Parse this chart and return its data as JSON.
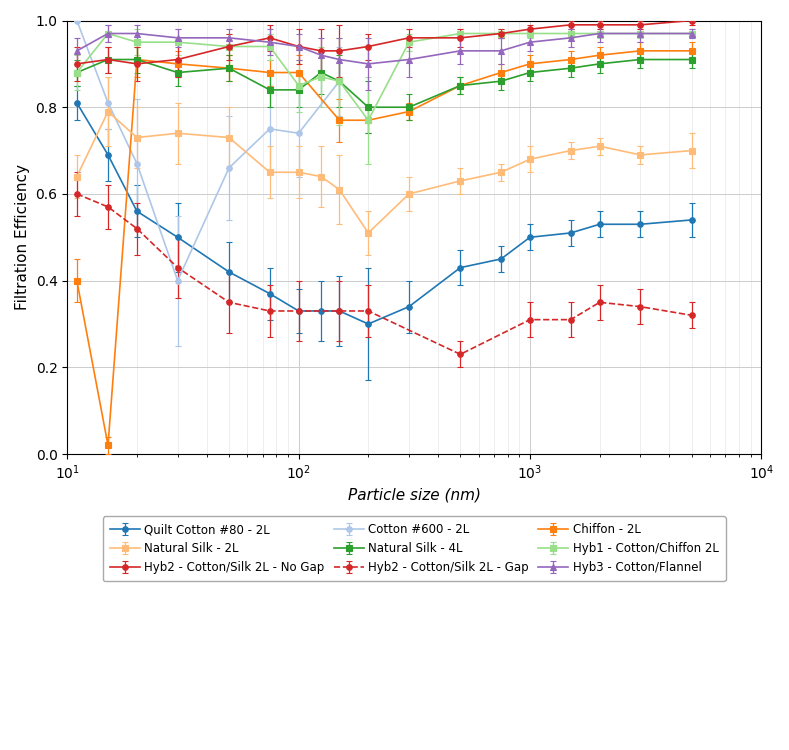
{
  "title": "",
  "xlabel": "Particle size (nm)",
  "ylabel": "Filtration Efficiency",
  "xlim": [
    10,
    10000
  ],
  "ylim": [
    0.0,
    1.0
  ],
  "background": "#ffffff",
  "series": [
    {
      "label": "Quilt Cotton #80 - 2L",
      "color": "#1f77b4",
      "linestyle": "-",
      "marker": "o",
      "markersize": 4,
      "x": [
        11,
        15,
        20,
        30,
        50,
        75,
        100,
        125,
        150,
        200,
        300,
        500,
        750,
        1000,
        1500,
        2000,
        3000,
        5000
      ],
      "y": [
        0.81,
        0.69,
        0.56,
        0.5,
        0.42,
        0.37,
        0.33,
        0.33,
        0.33,
        0.3,
        0.34,
        0.43,
        0.45,
        0.5,
        0.51,
        0.53,
        0.53,
        0.54
      ],
      "yerr": [
        0.04,
        0.06,
        0.06,
        0.08,
        0.07,
        0.06,
        0.05,
        0.07,
        0.08,
        0.13,
        0.06,
        0.04,
        0.03,
        0.03,
        0.03,
        0.03,
        0.03,
        0.04
      ]
    },
    {
      "label": "Cotton #600 - 2L",
      "color": "#aec7e8",
      "linestyle": "-",
      "marker": "o",
      "markersize": 4,
      "x": [
        11,
        15,
        20,
        30,
        50,
        75,
        100,
        150
      ],
      "y": [
        1.0,
        0.81,
        0.67,
        0.4,
        0.66,
        0.75,
        0.74,
        0.86
      ],
      "yerr": [
        0.0,
        0.06,
        0.15,
        0.15,
        0.12,
        0.1,
        0.1,
        0.08
      ]
    },
    {
      "label": "Chiffon - 2L",
      "color": "#ff7f0e",
      "linestyle": "-",
      "marker": "s",
      "markersize": 4,
      "x": [
        11,
        15,
        20,
        30,
        50,
        75,
        100,
        150,
        200,
        300,
        500,
        750,
        1000,
        1500,
        2000,
        3000,
        5000
      ],
      "y": [
        0.4,
        0.02,
        0.91,
        0.9,
        0.89,
        0.88,
        0.88,
        0.77,
        0.77,
        0.79,
        0.85,
        0.88,
        0.9,
        0.91,
        0.92,
        0.93,
        0.93
      ],
      "yerr": [
        0.05,
        0.02,
        0.04,
        0.03,
        0.03,
        0.03,
        0.04,
        0.05,
        0.03,
        0.02,
        0.02,
        0.02,
        0.02,
        0.02,
        0.02,
        0.02,
        0.02
      ]
    },
    {
      "label": "Natural Silk - 2L",
      "color": "#ffbb78",
      "linestyle": "-",
      "marker": "s",
      "markersize": 4,
      "x": [
        11,
        15,
        20,
        30,
        50,
        75,
        100,
        125,
        150,
        200,
        300,
        500,
        750,
        1000,
        1500,
        2000,
        3000,
        5000
      ],
      "y": [
        0.64,
        0.79,
        0.73,
        0.74,
        0.73,
        0.65,
        0.65,
        0.64,
        0.61,
        0.51,
        0.6,
        0.63,
        0.65,
        0.68,
        0.7,
        0.71,
        0.69,
        0.7
      ],
      "yerr": [
        0.05,
        0.08,
        0.07,
        0.07,
        0.07,
        0.06,
        0.06,
        0.07,
        0.08,
        0.05,
        0.04,
        0.03,
        0.02,
        0.03,
        0.02,
        0.02,
        0.02,
        0.04
      ]
    },
    {
      "label": "Natural Silk - 4L",
      "color": "#2ca02c",
      "linestyle": "-",
      "marker": "s",
      "markersize": 4,
      "x": [
        11,
        15,
        20,
        30,
        50,
        75,
        100,
        125,
        150,
        200,
        300,
        500,
        750,
        1000,
        1500,
        2000,
        3000,
        5000
      ],
      "y": [
        0.88,
        0.91,
        0.91,
        0.88,
        0.89,
        0.84,
        0.84,
        0.88,
        0.86,
        0.8,
        0.8,
        0.85,
        0.86,
        0.88,
        0.89,
        0.9,
        0.91,
        0.91
      ],
      "yerr": [
        0.03,
        0.03,
        0.03,
        0.03,
        0.03,
        0.04,
        0.04,
        0.05,
        0.06,
        0.06,
        0.03,
        0.02,
        0.02,
        0.02,
        0.02,
        0.02,
        0.02,
        0.02
      ]
    },
    {
      "label": "Hyb1 - Cotton/Chiffon 2L",
      "color": "#98df8a",
      "linestyle": "-",
      "marker": "s",
      "markersize": 4,
      "x": [
        11,
        15,
        20,
        30,
        50,
        75,
        100,
        125,
        150,
        200,
        300,
        500,
        750,
        1000,
        1500,
        2000,
        3000,
        5000
      ],
      "y": [
        0.88,
        0.97,
        0.95,
        0.95,
        0.94,
        0.94,
        0.85,
        0.87,
        0.86,
        0.77,
        0.95,
        0.97,
        0.97,
        0.97,
        0.97,
        0.97,
        0.97,
        0.97
      ],
      "yerr": [
        0.04,
        0.02,
        0.03,
        0.03,
        0.03,
        0.03,
        0.06,
        0.07,
        0.1,
        0.1,
        0.02,
        0.01,
        0.01,
        0.01,
        0.01,
        0.01,
        0.01,
        0.01
      ]
    },
    {
      "label": "Hyb2 - Cotton/Silk 2L - No Gap",
      "color": "#d62728",
      "linestyle": "-",
      "marker": "o",
      "markersize": 4,
      "x": [
        11,
        15,
        20,
        30,
        50,
        75,
        100,
        125,
        150,
        200,
        300,
        500,
        750,
        1000,
        1500,
        2000,
        3000,
        5000
      ],
      "y": [
        0.9,
        0.91,
        0.9,
        0.91,
        0.94,
        0.96,
        0.94,
        0.93,
        0.93,
        0.94,
        0.96,
        0.96,
        0.97,
        0.98,
        0.99,
        0.99,
        0.99,
        1.0
      ],
      "yerr": [
        0.04,
        0.03,
        0.04,
        0.04,
        0.03,
        0.03,
        0.04,
        0.05,
        0.06,
        0.03,
        0.02,
        0.02,
        0.01,
        0.01,
        0.01,
        0.01,
        0.01,
        0.01
      ]
    },
    {
      "label": "Hyb2 - Cotton/Silk 2L - Gap",
      "color": "#d62728",
      "linestyle": "--",
      "marker": "o",
      "markersize": 4,
      "x": [
        11,
        15,
        20,
        30,
        50,
        75,
        100,
        150,
        200,
        500,
        1000,
        1500,
        2000,
        3000,
        5000
      ],
      "y": [
        0.6,
        0.57,
        0.52,
        0.43,
        0.35,
        0.33,
        0.33,
        0.33,
        0.33,
        0.23,
        0.31,
        0.31,
        0.35,
        0.34,
        0.32
      ],
      "yerr": [
        0.05,
        0.05,
        0.06,
        0.07,
        0.07,
        0.06,
        0.07,
        0.07,
        0.06,
        0.03,
        0.04,
        0.04,
        0.04,
        0.04,
        0.03
      ]
    },
    {
      "label": "Hyb3 - Cotton/Flannel",
      "color": "#9467bd",
      "linestyle": "-",
      "marker": "^",
      "markersize": 4,
      "x": [
        11,
        15,
        20,
        30,
        50,
        75,
        100,
        125,
        150,
        200,
        300,
        500,
        750,
        1000,
        1500,
        2000,
        3000,
        5000
      ],
      "y": [
        0.93,
        0.97,
        0.97,
        0.96,
        0.96,
        0.95,
        0.94,
        0.92,
        0.91,
        0.9,
        0.91,
        0.93,
        0.93,
        0.95,
        0.96,
        0.97,
        0.97,
        0.97
      ],
      "yerr": [
        0.03,
        0.02,
        0.02,
        0.02,
        0.02,
        0.03,
        0.03,
        0.04,
        0.05,
        0.06,
        0.04,
        0.03,
        0.03,
        0.02,
        0.02,
        0.02,
        0.02,
        0.01
      ]
    }
  ],
  "legend_order": [
    0,
    3,
    6,
    1,
    4,
    7,
    2,
    5,
    8
  ]
}
